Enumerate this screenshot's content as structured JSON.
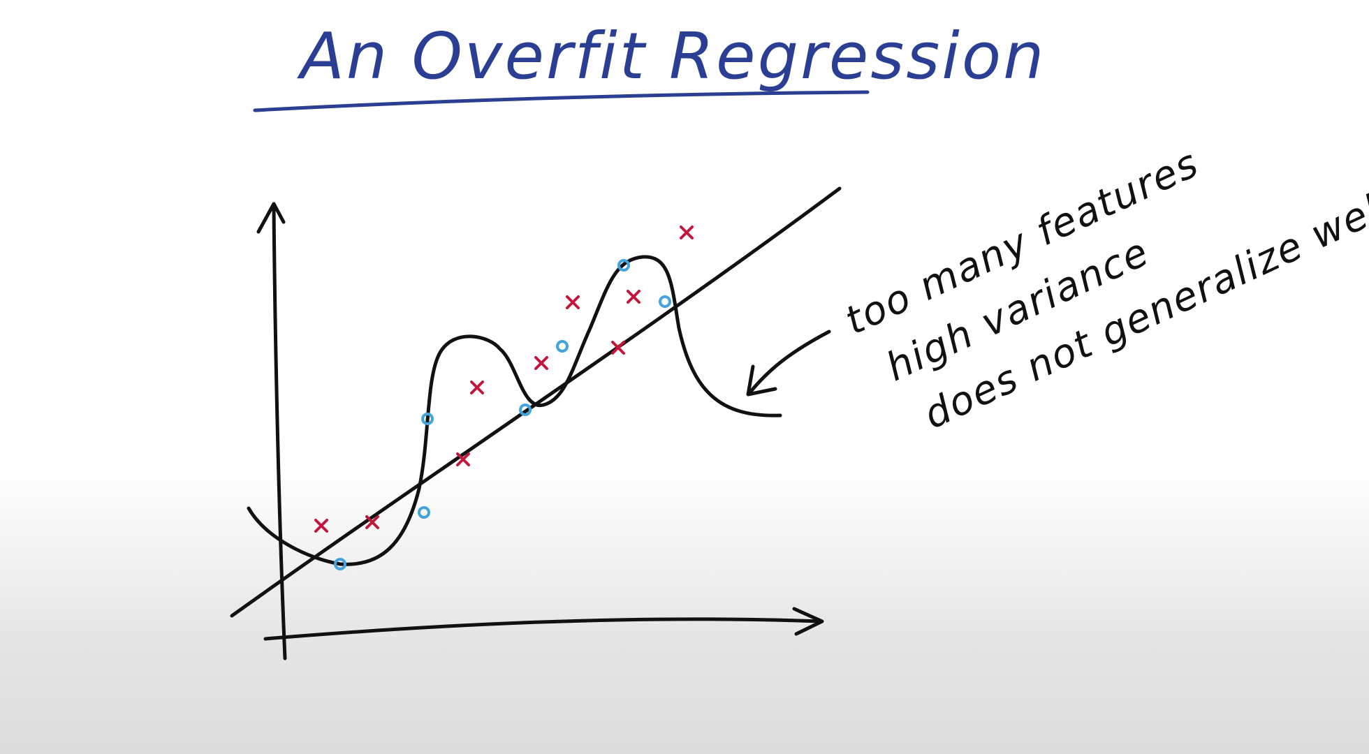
{
  "title": "An Overfit Regression",
  "annotation": {
    "lines": [
      "too many features",
      "high variance",
      "does not generalize well"
    ]
  },
  "colors": {
    "background": "#ffffff",
    "title_ink": "#2a3f93",
    "ink": "#111111",
    "cross_marks": "#c2163b",
    "circle_marks": "#43a3dd"
  },
  "legend": {
    "series": [
      {
        "marker": "x",
        "color": "#c2163b"
      },
      {
        "marker": "o",
        "color": "#43a3dd"
      }
    ]
  }
}
